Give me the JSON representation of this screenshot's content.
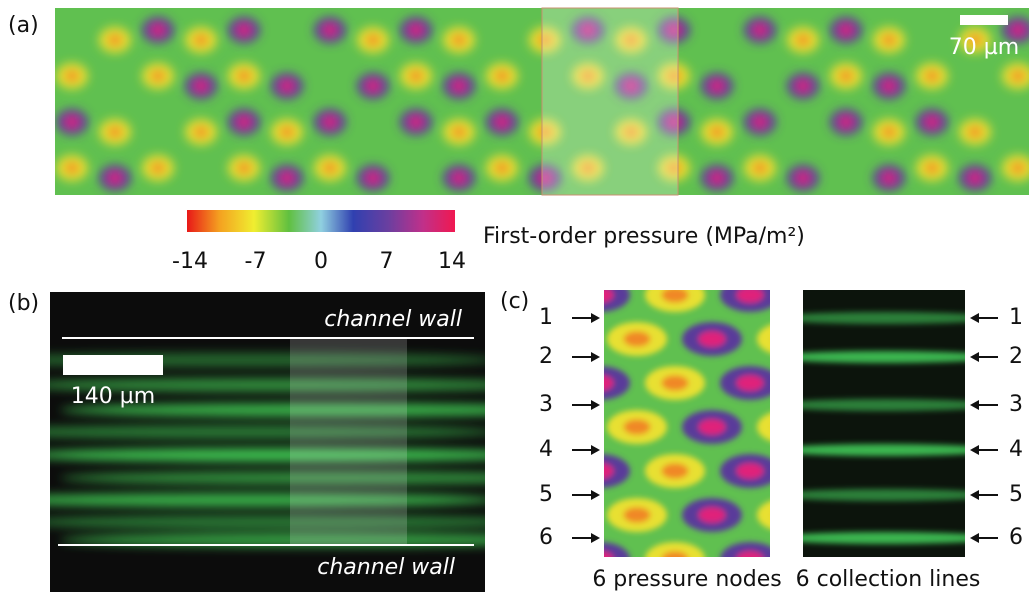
{
  "panel_a": {
    "label": "(a)",
    "scale_bar": "70 µm"
  },
  "colorbar": {
    "ticks": [
      -14,
      -7,
      0,
      7,
      14
    ],
    "label": "First-order pressure (MPa/m²)"
  },
  "panel_b": {
    "label": "(b)",
    "scale_bar": "140 µm",
    "top_wall": "channel wall",
    "bottom_wall": "channel wall"
  },
  "panel_c": {
    "label": "(c)",
    "left_markers": [
      "1",
      "2",
      "3",
      "4",
      "5",
      "6"
    ],
    "right_markers": [
      "1",
      "2",
      "3",
      "4",
      "5",
      "6"
    ],
    "left_caption": "6 pressure nodes",
    "right_caption": "6 collection lines"
  }
}
